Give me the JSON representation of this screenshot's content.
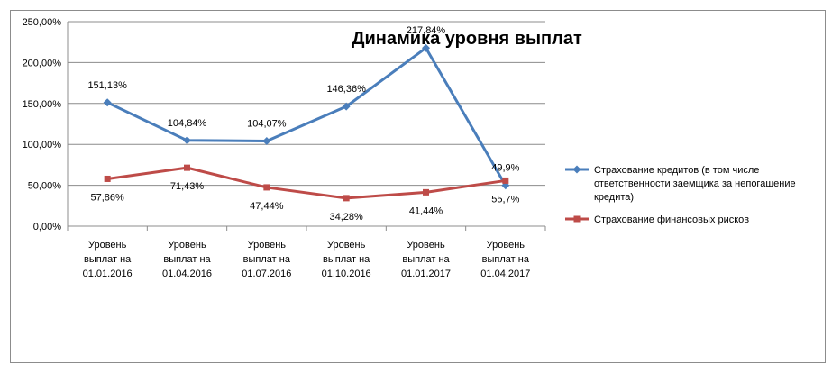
{
  "chart_data": {
    "type": "line",
    "title": "Динамика уровня выплат",
    "xlabel": "",
    "ylabel": "",
    "categories": [
      [
        "Уровень",
        "выплат на",
        "01.01.2016"
      ],
      [
        "Уровень",
        "выплат на",
        "01.04.2016"
      ],
      [
        "Уровень",
        "выплат на",
        "01.07.2016"
      ],
      [
        "Уровень",
        "выплат на",
        "01.10.2016"
      ],
      [
        "Уровень",
        "выплат на",
        "01.01.2017"
      ],
      [
        "Уровень",
        "выплат на",
        "01.04.2017"
      ]
    ],
    "y_ticks": [
      "0,00%",
      "50,00%",
      "100,00%",
      "150,00%",
      "200,00%",
      "250,00%"
    ],
    "ylim": [
      0,
      250
    ],
    "grid": true,
    "legend_position": "right",
    "series": [
      {
        "name_lines": [
          "Страхование кредитов (в том числе",
          "ответственности заемщика за непогашение",
          "кредита)"
        ],
        "color": "#4a7ebb",
        "marker": "diamond",
        "values": [
          151.13,
          104.84,
          104.07,
          146.36,
          217.84,
          49.9
        ],
        "labels": [
          "151,13%",
          "104,84%",
          "104,07%",
          "146,36%",
          "217,84%",
          "49,9%"
        ]
      },
      {
        "name_lines": [
          "Страхование финансовых рисков"
        ],
        "color": "#be4b48",
        "marker": "square",
        "values": [
          57.86,
          71.43,
          47.44,
          34.28,
          41.44,
          55.7
        ],
        "labels": [
          "57,86%",
          "71,43%",
          "47,44%",
          "34,28%",
          "41,44%",
          "55,7%"
        ]
      }
    ]
  }
}
